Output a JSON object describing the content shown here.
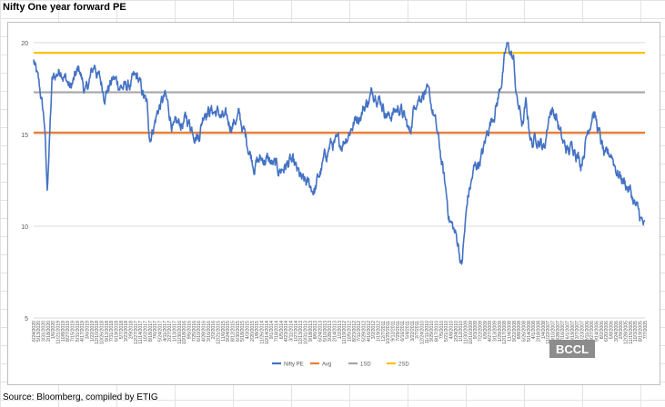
{
  "sheet": {
    "title": "Nifty One year forward PE",
    "source": "Source: Bloomberg, compiled by ETIG",
    "watermark": "BCCL"
  },
  "chart_data": {
    "type": "line",
    "title": "",
    "xlabel": "",
    "ylabel": "",
    "ylim": [
      5,
      20
    ],
    "yticks": [
      5,
      10,
      15,
      20
    ],
    "x_direction": "descending dates left to right (most recent at left)",
    "x_tick_labels": [
      "6/24/2020",
      "5/13/2020",
      "3/31/2020",
      "2/18/2020",
      "1/6/2020",
      "11/21/2019",
      "10/8/2019",
      "8/27/2019",
      "7/15/2019",
      "5/31/2019",
      "4/17/2019",
      "3/6/2019",
      "1/22/2019",
      "12/10/2018",
      "10/26/2018",
      "9/12/2018",
      "7/31/2018",
      "6/19/2018",
      "5/7/2018",
      "3/23/2018",
      "2/9/2018",
      "12/27/2017",
      "11/14/2017",
      "10/2/2017",
      "8/18/2017",
      "7/6/2017",
      "5/24/2017",
      "4/11/2017",
      "2/27/2017",
      "1/13/2017",
      "11/30/2016",
      "10/18/2016",
      "9/6/2016",
      "7/25/2016",
      "6/10/2016",
      "4/28/2016",
      "3/16/2016",
      "2/2/2016",
      "12/21/2015",
      "11/6/2015",
      "9/24/2015",
      "8/12/2015",
      "6/30/2015",
      "5/18/2015",
      "4/3/2015",
      "2/20/2015",
      "1/8/2015",
      "11/26/2014",
      "10/14/2014",
      "9/1/2014",
      "7/18/2014",
      "6/5/2014",
      "4/23/2014",
      "3/11/2014",
      "1/27/2014",
      "12/13/2013",
      "10/31/2013",
      "9/18/2013",
      "8/6/2013",
      "6/24/2013",
      "5/10/2013",
      "3/28/2013",
      "2/14/2013",
      "1/2/2013",
      "11/19/2012",
      "10/5/2012",
      "8/23/2012",
      "7/11/2012",
      "5/29/2012",
      "4/16/2012",
      "3/2/2012",
      "1/19/2012",
      "12/7/2011",
      "10/25/2011",
      "9/12/2011",
      "7/29/2011",
      "6/16/2011",
      "5/4/2011",
      "3/22/2011",
      "2/7/2011",
      "12/24/2010",
      "11/11/2010",
      "9/29/2010",
      "8/17/2010",
      "7/5/2010",
      "5/21/2010",
      "4/8/2010",
      "2/24/2010",
      "1/12/2010",
      "11/30/2009",
      "10/16/2009",
      "9/3/2009",
      "7/22/2009",
      "6/9/2009",
      "4/27/2009",
      "3/13/2009",
      "1/29/2009",
      "12/17/2008",
      "11/4/2008",
      "9/22/2008",
      "8/8/2008",
      "6/26/2008",
      "5/14/2008",
      "4/1/2008",
      "2/18/2008",
      "1/4/2008",
      "11/22/2007",
      "10/10/2007",
      "8/28/2007",
      "7/16/2007",
      "6/1/2007",
      "4/19/2007",
      "3/7/2007",
      "1/23/2007",
      "12/11/2006",
      "10/27/2006",
      "9/14/2006",
      "8/2/2006",
      "6/20/2006",
      "5/8/2006",
      "3/24/2006",
      "2/9/2006",
      "12/28/2005",
      "11/15/2005",
      "10/3/2005",
      "8/19/2005",
      "7/7/2005"
    ],
    "pe_profile": {
      "t": [
        0,
        0.012,
        0.018,
        0.022,
        0.03,
        0.045,
        0.06,
        0.075,
        0.085,
        0.1,
        0.115,
        0.13,
        0.15,
        0.17,
        0.185,
        0.19,
        0.205,
        0.215,
        0.23,
        0.25,
        0.27,
        0.28,
        0.3,
        0.32,
        0.335,
        0.345,
        0.36,
        0.38,
        0.4,
        0.42,
        0.44,
        0.46,
        0.475,
        0.485,
        0.5,
        0.52,
        0.54,
        0.56,
        0.58,
        0.6,
        0.615,
        0.625,
        0.64,
        0.655,
        0.665,
        0.68,
        0.695,
        0.7,
        0.71,
        0.72,
        0.735,
        0.745,
        0.76,
        0.775,
        0.785,
        0.79,
        0.8,
        0.805,
        0.815,
        0.825,
        0.835,
        0.845,
        0.855,
        0.865,
        0.875,
        0.885,
        0.895,
        0.905,
        0.915,
        0.925,
        0.935,
        0.945,
        0.955,
        0.965,
        0.975,
        0.985,
        1.0
      ],
      "pe": [
        19.0,
        17.0,
        15.5,
        11.8,
        17.8,
        18.7,
        17.5,
        18.5,
        17.2,
        18.8,
        17.3,
        18.0,
        17.5,
        18.0,
        16.5,
        14.9,
        16.5,
        17.0,
        15.2,
        15.8,
        15.0,
        16.5,
        16.2,
        15.5,
        16.0,
        15.0,
        13.5,
        13.7,
        13.0,
        13.5,
        12.3,
        12.0,
        13.5,
        14.5,
        14.3,
        15.5,
        16.5,
        17.5,
        16.0,
        16.5,
        15.0,
        17.0,
        17.5,
        16.0,
        14.0,
        10.5,
        9.0,
        7.8,
        11.5,
        13.0,
        14.0,
        15.5,
        17.0,
        19.9,
        19.0,
        17.0,
        15.5,
        16.5,
        14.5,
        15.0,
        14.2,
        16.5,
        16.0,
        14.5,
        14.0,
        14.5,
        13.5,
        15.0,
        16.5,
        15.0,
        13.5,
        14.0,
        13.0,
        12.5,
        12.0,
        11.0,
        9.8
      ]
    },
    "series": [
      {
        "name": "Nifty PE",
        "color": "#4472c4",
        "kind": "line"
      },
      {
        "name": "Avg",
        "color": "#ed7d31",
        "kind": "hline",
        "value": 15.1
      },
      {
        "name": "1SD",
        "color": "#a5a5a5",
        "kind": "hline",
        "value": 17.3
      },
      {
        "name": "2SD",
        "color": "#ffc000",
        "kind": "hline",
        "value": 19.45
      }
    ],
    "grid": true,
    "legend": "bottom"
  }
}
